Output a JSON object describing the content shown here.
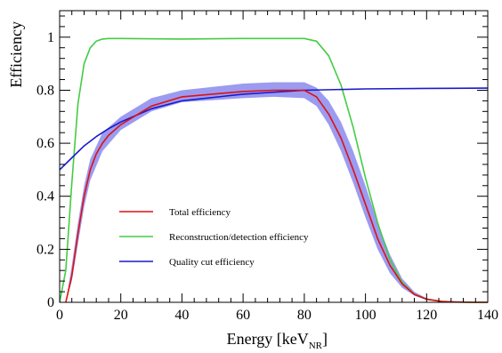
{
  "chart_data": {
    "type": "line",
    "xlabel_main": "Energy [keV",
    "xlabel_sub": "NR",
    "xlabel_close": "]",
    "ylabel": "Efficiency",
    "xlim": [
      0,
      140
    ],
    "ylim": [
      0,
      1.1
    ],
    "x_ticks": [
      0,
      20,
      40,
      60,
      80,
      100,
      120,
      140
    ],
    "y_ticks": [
      0,
      0.2,
      0.4,
      0.6,
      0.8,
      1
    ],
    "x_tick_labels": [
      "0",
      "20",
      "40",
      "60",
      "80",
      "100",
      "120",
      "140"
    ],
    "y_tick_labels": [
      "0",
      "0.2",
      "0.4",
      "0.6",
      "0.8",
      "1"
    ],
    "grid": false,
    "legend_placement": "lower-left",
    "band": {
      "color": "#9b9bf0",
      "x": [
        2,
        4,
        6,
        8,
        10,
        14,
        20,
        30,
        40,
        60,
        70,
        80,
        84,
        88,
        92,
        96,
        100,
        104,
        108,
        112,
        116,
        120,
        125,
        130,
        135,
        140
      ],
      "lower": [
        0.0,
        0.08,
        0.22,
        0.36,
        0.46,
        0.57,
        0.65,
        0.72,
        0.755,
        0.77,
        0.775,
        0.77,
        0.74,
        0.67,
        0.57,
        0.45,
        0.32,
        0.2,
        0.11,
        0.055,
        0.025,
        0.008,
        0.002,
        0.0,
        0.0,
        0.0
      ],
      "upper": [
        0.0,
        0.14,
        0.3,
        0.44,
        0.54,
        0.64,
        0.7,
        0.77,
        0.8,
        0.825,
        0.83,
        0.83,
        0.81,
        0.76,
        0.68,
        0.57,
        0.44,
        0.3,
        0.18,
        0.09,
        0.04,
        0.015,
        0.004,
        0.001,
        0.0,
        0.0
      ]
    },
    "series": [
      {
        "name": "Reconstruction/detection efficiency",
        "color": "#44cc44",
        "x": [
          0,
          2,
          4,
          6,
          8,
          10,
          12,
          14,
          16,
          20,
          40,
          60,
          80,
          84,
          88,
          92,
          96,
          100,
          104,
          108,
          112,
          116,
          120,
          125,
          130,
          135,
          140
        ],
        "y": [
          0.0,
          0.12,
          0.45,
          0.75,
          0.9,
          0.96,
          0.985,
          0.993,
          0.995,
          0.995,
          0.993,
          0.995,
          0.995,
          0.985,
          0.93,
          0.82,
          0.66,
          0.47,
          0.3,
          0.16,
          0.075,
          0.03,
          0.012,
          0.003,
          0.001,
          0.0,
          0.0
        ]
      },
      {
        "name": "Quality cut efficiency",
        "color": "#1a1acc",
        "x": [
          0,
          4,
          8,
          12,
          16,
          20,
          30,
          40,
          60,
          80,
          100,
          120,
          140
        ],
        "y": [
          0.5,
          0.545,
          0.59,
          0.625,
          0.655,
          0.68,
          0.73,
          0.76,
          0.785,
          0.8,
          0.805,
          0.807,
          0.808
        ]
      },
      {
        "name": "Total efficiency",
        "color": "#dd1111",
        "x": [
          2,
          4,
          6,
          8,
          10,
          12,
          14,
          16,
          20,
          30,
          40,
          60,
          70,
          80,
          84,
          88,
          92,
          96,
          100,
          104,
          108,
          112,
          116,
          120,
          125,
          130,
          135,
          140
        ],
        "y": [
          0.0,
          0.1,
          0.26,
          0.4,
          0.5,
          0.56,
          0.6,
          0.63,
          0.67,
          0.74,
          0.775,
          0.795,
          0.8,
          0.8,
          0.775,
          0.71,
          0.62,
          0.5,
          0.37,
          0.24,
          0.14,
          0.07,
          0.03,
          0.012,
          0.003,
          0.001,
          0.0,
          0.0
        ]
      }
    ],
    "legend": [
      {
        "label": "Total efficiency",
        "color": "#dd1111"
      },
      {
        "label": "Reconstruction/detection efficiency",
        "color": "#44cc44"
      },
      {
        "label": "Quality cut efficiency",
        "color": "#1a1acc"
      }
    ]
  }
}
